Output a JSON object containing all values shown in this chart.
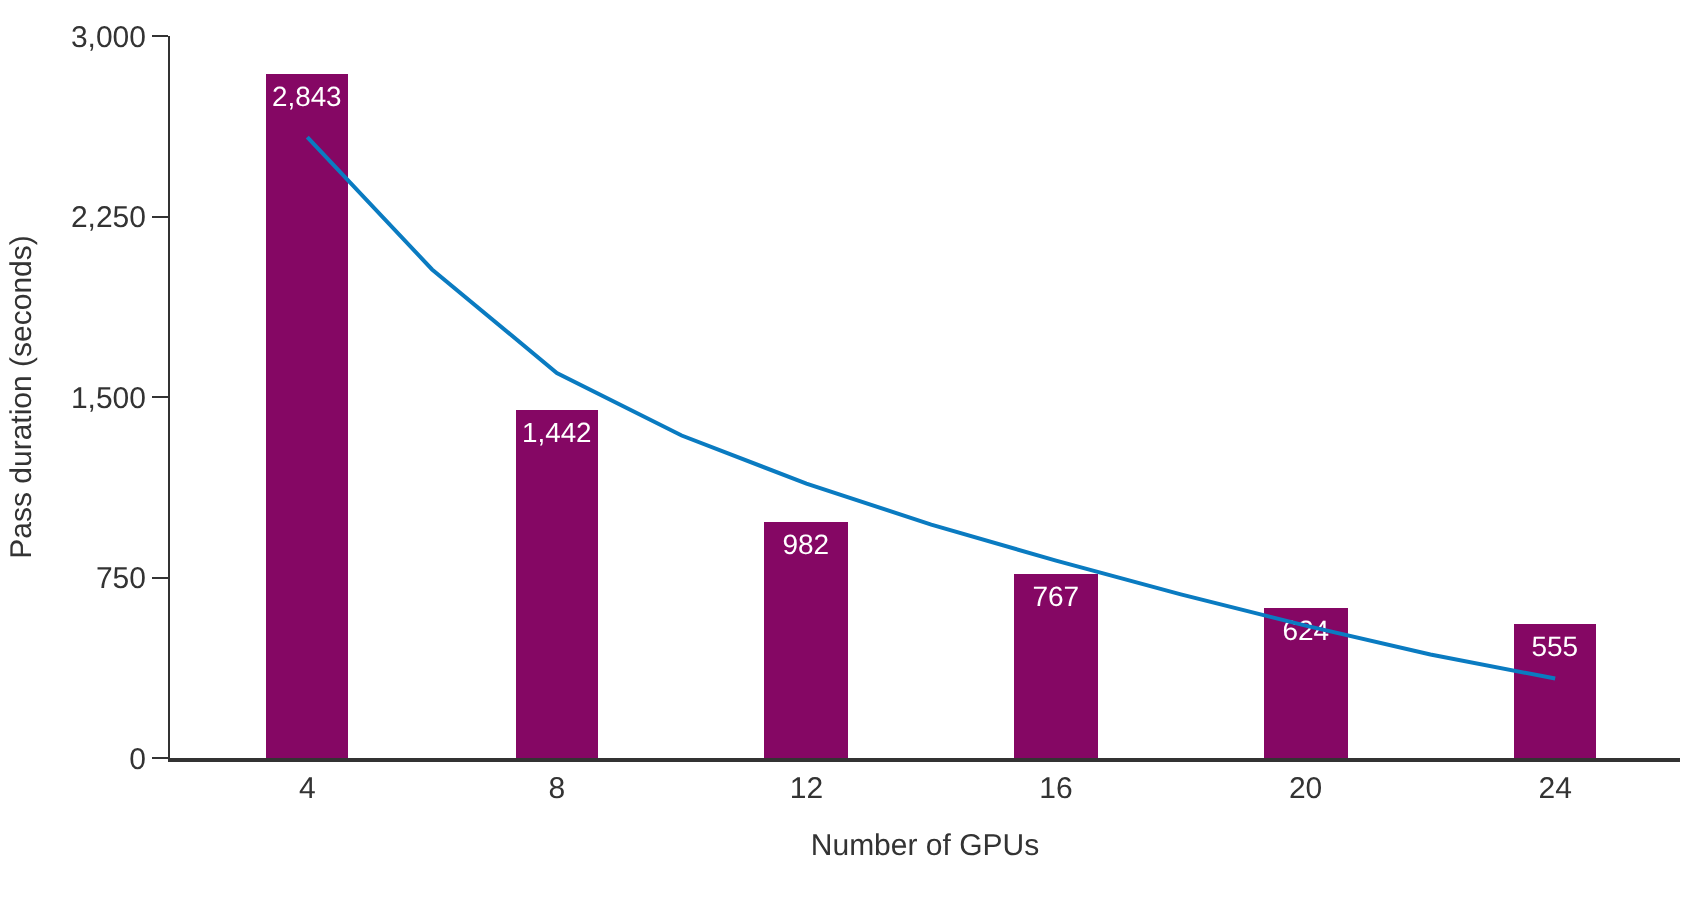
{
  "chart_data": {
    "type": "bar",
    "xlabel": "Number of GPUs",
    "ylabel": "Pass duration (seconds)",
    "x": [
      4,
      8,
      12,
      16,
      20,
      24
    ],
    "xlim": [
      1.8,
      26
    ],
    "xticks": [
      4,
      8,
      12,
      16,
      20,
      24
    ],
    "ylim": [
      0,
      3000
    ],
    "yticks": [
      0,
      {
        "value": 750,
        "label": "750"
      },
      {
        "value": 1500,
        "label": "1,500"
      },
      {
        "value": 2250,
        "label": "2,250"
      },
      {
        "value": 3000,
        "label": "3,000"
      }
    ],
    "series": [
      {
        "color": "#850764",
        "values": [
          2843,
          1442,
          982,
          767,
          624,
          555
        ],
        "value_labels": [
          "2,843",
          "1,442",
          "982",
          "767",
          "624",
          "555"
        ]
      },
      {
        "type": "line",
        "color": "#0a7bc1",
        "x": [
          4,
          6,
          8,
          10,
          12,
          14,
          16,
          18,
          20,
          22,
          24
        ],
        "values": [
          2580,
          2030,
          1600,
          1340,
          1140,
          970,
          820,
          680,
          550,
          430,
          330
        ]
      }
    ]
  }
}
